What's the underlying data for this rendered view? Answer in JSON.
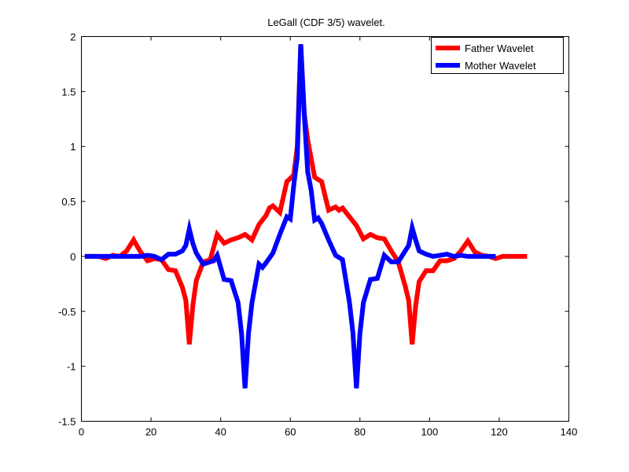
{
  "chart_data": {
    "type": "line",
    "title": "LeGall (CDF 3/5) wavelet.",
    "xlabel": "",
    "ylabel": "",
    "xlim": [
      0,
      140
    ],
    "ylim": [
      -1.5,
      2
    ],
    "xticks": [
      0,
      20,
      40,
      60,
      80,
      100,
      120,
      140
    ],
    "xtick_labels": [
      "0",
      "20",
      "40",
      "60",
      "80",
      "100",
      "120",
      "140"
    ],
    "yticks": [
      -1.5,
      -1,
      -0.5,
      0,
      0.5,
      1,
      1.5,
      2
    ],
    "ytick_labels": [
      "-1.5",
      "-1",
      "-0.5",
      "0",
      "0.5",
      "1",
      "1.5",
      "2"
    ],
    "grid": false,
    "legend_position": "top-right",
    "series": [
      {
        "name": "Father Wavelet",
        "color": "#ff0000",
        "points": [
          [
            1,
            0
          ],
          [
            3,
            0
          ],
          [
            5,
            0
          ],
          [
            7,
            -0.02
          ],
          [
            9,
            0.01
          ],
          [
            11,
            0
          ],
          [
            13,
            0.05
          ],
          [
            15,
            0.15
          ],
          [
            17,
            0.04
          ],
          [
            19,
            -0.04
          ],
          [
            21,
            -0.02
          ],
          [
            23,
            -0.03
          ],
          [
            25,
            -0.12
          ],
          [
            27,
            -0.13
          ],
          [
            29,
            -0.28
          ],
          [
            30,
            -0.4
          ],
          [
            31,
            -0.8
          ],
          [
            32,
            -0.45
          ],
          [
            33,
            -0.22
          ],
          [
            35,
            -0.05
          ],
          [
            37,
            -0.03
          ],
          [
            39,
            0.2
          ],
          [
            41,
            0.12
          ],
          [
            43,
            0.15
          ],
          [
            45,
            0.17
          ],
          [
            47,
            0.2
          ],
          [
            49,
            0.15
          ],
          [
            51,
            0.29
          ],
          [
            53,
            0.37
          ],
          [
            54,
            0.44
          ],
          [
            55,
            0.46
          ],
          [
            57,
            0.4
          ],
          [
            59,
            0.68
          ],
          [
            61,
            0.74
          ],
          [
            62,
            1.0
          ],
          [
            63,
            1.93
          ],
          [
            64,
            1.3
          ],
          [
            65,
            1.06
          ],
          [
            67,
            0.72
          ],
          [
            69,
            0.68
          ],
          [
            71,
            0.42
          ],
          [
            73,
            0.45
          ],
          [
            74,
            0.42
          ],
          [
            75,
            0.44
          ],
          [
            77,
            0.36
          ],
          [
            79,
            0.28
          ],
          [
            81,
            0.16
          ],
          [
            83,
            0.2
          ],
          [
            85,
            0.17
          ],
          [
            87,
            0.16
          ],
          [
            89,
            0.05
          ],
          [
            91,
            -0.05
          ],
          [
            93,
            -0.27
          ],
          [
            94,
            -0.4
          ],
          [
            95,
            -0.8
          ],
          [
            96,
            -0.45
          ],
          [
            97,
            -0.23
          ],
          [
            99,
            -0.13
          ],
          [
            101,
            -0.13
          ],
          [
            103,
            -0.04
          ],
          [
            105,
            -0.04
          ],
          [
            107,
            -0.02
          ],
          [
            109,
            0.05
          ],
          [
            111,
            0.14
          ],
          [
            113,
            0.04
          ],
          [
            115,
            0.01
          ],
          [
            117,
            0
          ],
          [
            119,
            -0.02
          ],
          [
            121,
            0
          ],
          [
            123,
            0
          ],
          [
            125,
            0
          ],
          [
            128,
            0
          ]
        ]
      },
      {
        "name": "Mother Wavelet",
        "color": "#0000ff",
        "points": [
          [
            1,
            0
          ],
          [
            3,
            0
          ],
          [
            5,
            0
          ],
          [
            7,
            0
          ],
          [
            9,
            0
          ],
          [
            11,
            0
          ],
          [
            13,
            0
          ],
          [
            15,
            0
          ],
          [
            17,
            0
          ],
          [
            19,
            0.01
          ],
          [
            21,
            0
          ],
          [
            23,
            -0.03
          ],
          [
            25,
            0.02
          ],
          [
            27,
            0.02
          ],
          [
            29,
            0.05
          ],
          [
            30,
            0.1
          ],
          [
            31,
            0.25
          ],
          [
            32,
            0.12
          ],
          [
            33,
            0.03
          ],
          [
            35,
            -0.07
          ],
          [
            37,
            -0.05
          ],
          [
            38,
            -0.04
          ],
          [
            39,
            0.01
          ],
          [
            41,
            -0.21
          ],
          [
            43,
            -0.22
          ],
          [
            45,
            -0.42
          ],
          [
            46,
            -0.7
          ],
          [
            47,
            -1.2
          ],
          [
            48,
            -0.7
          ],
          [
            49,
            -0.42
          ],
          [
            51,
            -0.07
          ],
          [
            52,
            -0.1
          ],
          [
            53,
            -0.06
          ],
          [
            55,
            0.03
          ],
          [
            57,
            0.2
          ],
          [
            59,
            0.36
          ],
          [
            60,
            0.34
          ],
          [
            61,
            0.65
          ],
          [
            62,
            0.9
          ],
          [
            63,
            1.93
          ],
          [
            64,
            1.3
          ],
          [
            65,
            0.77
          ],
          [
            66,
            0.6
          ],
          [
            67,
            0.33
          ],
          [
            68,
            0.35
          ],
          [
            69,
            0.3
          ],
          [
            71,
            0.15
          ],
          [
            73,
            0.01
          ],
          [
            75,
            -0.03
          ],
          [
            77,
            -0.42
          ],
          [
            78,
            -0.7
          ],
          [
            79,
            -1.2
          ],
          [
            80,
            -0.7
          ],
          [
            81,
            -0.42
          ],
          [
            83,
            -0.21
          ],
          [
            85,
            -0.2
          ],
          [
            87,
            0.01
          ],
          [
            89,
            -0.05
          ],
          [
            91,
            -0.05
          ],
          [
            93,
            0.05
          ],
          [
            94,
            0.1
          ],
          [
            95,
            0.26
          ],
          [
            96,
            0.15
          ],
          [
            97,
            0.05
          ],
          [
            99,
            0.02
          ],
          [
            101,
            0
          ],
          [
            103,
            0.01
          ],
          [
            105,
            0.02
          ],
          [
            107,
            0
          ],
          [
            109,
            0.01
          ],
          [
            111,
            0
          ],
          [
            113,
            0
          ],
          [
            115,
            0
          ],
          [
            117,
            0
          ],
          [
            119,
            0
          ]
        ]
      }
    ]
  }
}
